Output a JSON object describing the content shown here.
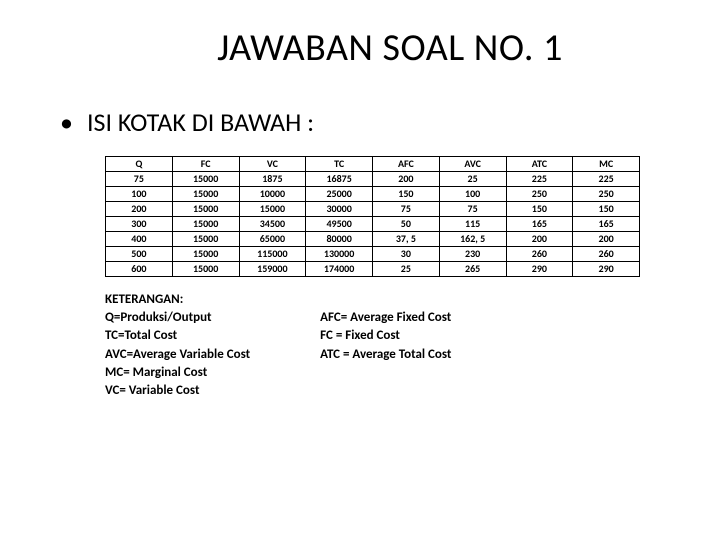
{
  "title": "JAWABAN SOAL NO. 1",
  "subtitle": "ISI KOTAK DI BAWAH :",
  "table": {
    "columns": [
      "Q",
      "FC",
      "VC",
      "TC",
      "AFC",
      "AVC",
      "ATC",
      "MC"
    ],
    "rows": [
      [
        "75",
        "15000",
        "1875",
        "16875",
        "200",
        "25",
        "225",
        "225"
      ],
      [
        "100",
        "15000",
        "10000",
        "25000",
        "150",
        "100",
        "250",
        "250"
      ],
      [
        "200",
        "15000",
        "15000",
        "30000",
        "75",
        "75",
        "150",
        "150"
      ],
      [
        "300",
        "15000",
        "34500",
        "49500",
        "50",
        "115",
        "165",
        "165"
      ],
      [
        "400",
        "15000",
        "65000",
        "80000",
        "37, 5",
        "162, 5",
        "200",
        "200"
      ],
      [
        "500",
        "15000",
        "115000",
        "130000",
        "30",
        "230",
        "260",
        "260"
      ],
      [
        "600",
        "15000",
        "159000",
        "174000",
        "25",
        "265",
        "290",
        "290"
      ]
    ],
    "border_color": "#000000",
    "header_fontsize": 10,
    "cell_fontsize": 10,
    "background_color": "#ffffff"
  },
  "legend": {
    "left": [
      "KETERANGAN:",
      "Q=Produksi/Output",
      "TC=Total Cost",
      "AVC=Average Variable Cost",
      "MC= Marginal Cost",
      "VC= Variable Cost"
    ],
    "right": [
      "",
      "AFC= Average Fixed Cost",
      "FC   = Fixed Cost",
      "ATC = Average Total Cost"
    ]
  },
  "colors": {
    "background": "#ffffff",
    "text": "#000000",
    "border": "#000000"
  }
}
